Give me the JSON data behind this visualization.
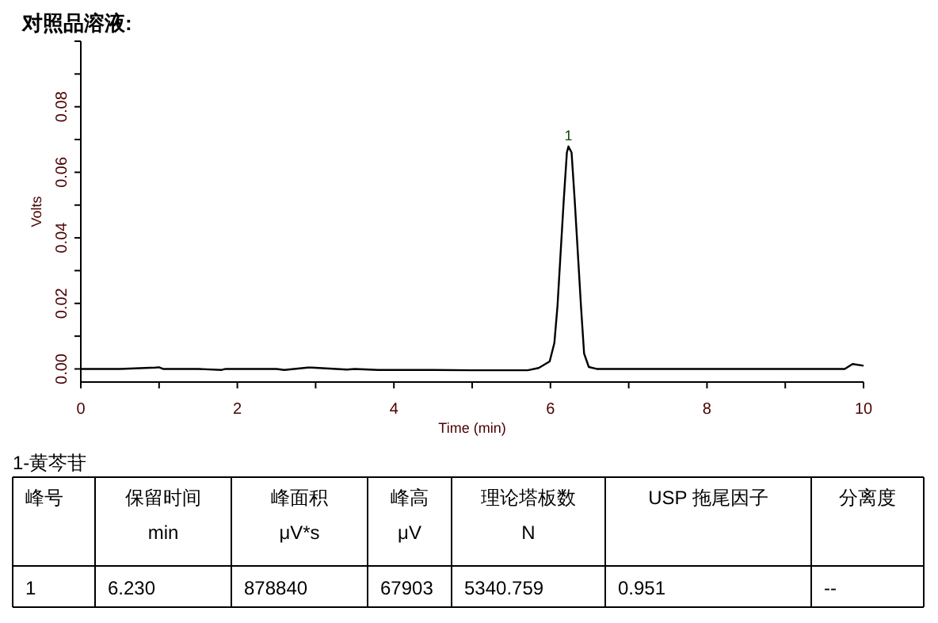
{
  "chart_data": {
    "type": "line",
    "title": "对照品溶液:",
    "xlabel": "Time (min)",
    "ylabel": "Volts",
    "x": [
      0,
      0.5,
      0.95,
      1.0,
      1.05,
      1.5,
      1.8,
      1.85,
      2.5,
      2.6,
      2.9,
      2.95,
      3.4,
      3.5,
      3.8,
      4.5,
      5.0,
      5.5,
      5.71,
      5.85,
      5.99,
      6.05,
      6.09,
      6.13,
      6.17,
      6.21,
      6.23,
      6.27,
      6.31,
      6.35,
      6.39,
      6.43,
      6.49,
      6.59,
      7.5,
      8.5,
      9.76,
      9.86,
      10.0
    ],
    "series": [
      {
        "color": "#000000",
        "values": [
          0,
          0,
          0.0004,
          0.0005,
          0,
          0,
          -0.0003,
          0,
          0,
          -0.0003,
          0.0004,
          0.0004,
          -0.0002,
          0,
          -0.0003,
          -0.0003,
          -0.0004,
          -0.0004,
          -0.0004,
          0.0003,
          0.0023,
          0.0079,
          0.0192,
          0.0354,
          0.0515,
          0.066,
          0.0679,
          0.066,
          0.0515,
          0.0354,
          0.0192,
          0.0047,
          0.0006,
          0,
          0,
          0,
          0,
          0.0015,
          0.001
        ]
      }
    ],
    "xlim": [
      0,
      10
    ],
    "ylim": [
      -0.004,
      0.1
    ],
    "xticks": [
      0,
      {
        "value": 1,
        "label": null
      },
      2,
      {
        "value": 3,
        "label": null
      },
      4,
      {
        "value": 5,
        "label": null
      },
      6,
      {
        "value": 7,
        "label": null
      },
      8,
      {
        "value": 9,
        "label": null
      },
      10
    ],
    "yticks": [
      {
        "value": 0,
        "label": "0.00"
      },
      {
        "value": 0.01,
        "label": null
      },
      {
        "value": 0.02,
        "label": "0.02"
      },
      {
        "value": 0.03,
        "label": null
      },
      {
        "value": 0.04,
        "label": "0.04"
      },
      {
        "value": 0.05,
        "label": null
      },
      {
        "value": 0.06,
        "label": "0.06"
      },
      {
        "value": 0.07,
        "label": null
      },
      {
        "value": 0.08,
        "label": "0.08"
      },
      {
        "value": 0.09,
        "label": null
      },
      {
        "value": 0.1,
        "label": null
      }
    ],
    "grid": false,
    "marker": "none",
    "line_style": "solid",
    "annotations": [
      {
        "text": "1",
        "x": 6.23,
        "y": 0.0679
      },
      "1-黄芩苷",
      "峰号",
      "保留时间\nmin",
      "峰面积\nμV*s",
      "峰高\nμV",
      "理论塔板数\nN",
      "USP 拖尾因子",
      "分离度",
      "1",
      "6.230",
      "878840",
      "67903",
      "5340.759",
      "0.951",
      "--"
    ]
  }
}
